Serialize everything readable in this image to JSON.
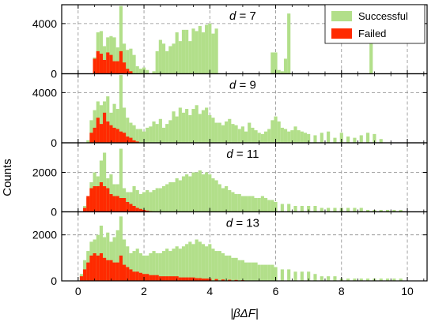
{
  "chart_data": {
    "type": "histogram",
    "xlabel": "|βΔF|",
    "ylabel": "Counts",
    "xlim": [
      -0.5,
      10.6
    ],
    "x_ticks": [
      0,
      2,
      4,
      6,
      8,
      10
    ],
    "grid": true,
    "bin_width": 0.1,
    "legend": {
      "position": "top-right",
      "entries": [
        "Successful",
        "Failed"
      ]
    },
    "colors": {
      "Successful": "#b2df8a",
      "Failed": "#ff2a00"
    },
    "panels": [
      {
        "label_prefix": "d",
        "label_value": "7",
        "ylim": [
          0,
          5500
        ],
        "y_ticks": [
          0,
          4000
        ],
        "series": [
          {
            "name": "Successful",
            "x": [
              0.5,
              0.6,
              0.7,
              0.8,
              0.9,
              1.0,
              1.1,
              1.2,
              1.3,
              1.4,
              1.5,
              1.6,
              1.7,
              1.8,
              1.9,
              2.0,
              2.1,
              2.3,
              2.4,
              2.5,
              2.6,
              2.7,
              2.8,
              2.9,
              3.0,
              3.1,
              3.2,
              3.3,
              3.4,
              3.5,
              3.6,
              3.7,
              3.8,
              3.9,
              4.0,
              4.1,
              4.2,
              5.9,
              6.0,
              6.1,
              6.2,
              6.3,
              6.4,
              8.9
            ],
            "y": [
              1300,
              3300,
              3400,
              2200,
              2900,
              3000,
              2900,
              2100,
              5400,
              2400,
              1900,
              2000,
              1500,
              600,
              400,
              500,
              300,
              200,
              1800,
              2700,
              2400,
              1800,
              2200,
              2400,
              3300,
              2600,
              3500,
              3500,
              2600,
              3600,
              3400,
              3800,
              3300,
              3900,
              4000,
              3200,
              3600,
              1700,
              1700,
              300,
              200,
              1200,
              4800,
              2400
            ]
          },
          {
            "name": "Failed",
            "x": [
              0.5,
              0.6,
              0.7,
              0.8,
              0.9,
              1.0,
              1.1,
              1.2,
              1.3,
              1.4,
              1.5,
              1.6
            ],
            "y": [
              1200,
              1800,
              1600,
              1100,
              1700,
              1500,
              1000,
              1000,
              1800,
              900,
              400,
              200
            ]
          }
        ]
      },
      {
        "label_prefix": "d",
        "label_value": "9",
        "ylim": [
          0,
          5500
        ],
        "y_ticks": [
          0,
          4000
        ],
        "series": [
          {
            "name": "Successful",
            "x": [
              0.3,
              0.4,
              0.5,
              0.6,
              0.7,
              0.8,
              0.9,
              1.0,
              1.1,
              1.2,
              1.3,
              1.4,
              1.5,
              1.6,
              1.7,
              1.8,
              1.9,
              2.0,
              2.1,
              2.2,
              2.3,
              2.4,
              2.5,
              2.6,
              2.7,
              2.8,
              2.9,
              3.0,
              3.1,
              3.2,
              3.3,
              3.4,
              3.5,
              3.6,
              3.7,
              3.8,
              3.9,
              4.0,
              4.1,
              4.2,
              4.3,
              4.4,
              4.5,
              4.6,
              4.7,
              4.8,
              4.9,
              5.0,
              5.1,
              5.2,
              5.3,
              5.4,
              5.5,
              5.6,
              5.7,
              5.8,
              5.9,
              6.0,
              6.1,
              6.2,
              6.3,
              6.4,
              6.5,
              6.6,
              6.7,
              6.8,
              6.9,
              7.0,
              7.2,
              7.4,
              7.6,
              7.8,
              8.0,
              8.2,
              8.4,
              8.6,
              8.8,
              9.0,
              9.2
            ],
            "y": [
              200,
              1800,
              2600,
              3300,
              3000,
              3300,
              3700,
              2400,
              3100,
              2700,
              5400,
              2800,
              2000,
              1600,
              1400,
              1100,
              1100,
              900,
              1200,
              1300,
              1700,
              1500,
              1900,
              1200,
              1500,
              1800,
              2500,
              2100,
              2800,
              2400,
              2700,
              2200,
              2700,
              3000,
              2300,
              2600,
              2800,
              2200,
              2000,
              1600,
              1600,
              1400,
              1700,
              1900,
              1500,
              1400,
              1100,
              1300,
              900,
              1600,
              1200,
              1000,
              800,
              700,
              900,
              1100,
              1800,
              2100,
              1700,
              1200,
              1100,
              900,
              1000,
              1300,
              1000,
              900,
              800,
              700,
              600,
              800,
              900,
              400,
              800,
              500,
              400,
              600,
              800,
              700,
              300
            ]
          },
          {
            "name": "Failed",
            "x": [
              0.4,
              0.5,
              0.6,
              0.7,
              0.8,
              0.9,
              1.0,
              1.1,
              1.2,
              1.3,
              1.4,
              1.5,
              1.6,
              1.7,
              1.8
            ],
            "y": [
              800,
              1200,
              2000,
              1500,
              2400,
              1700,
              1400,
              1200,
              1100,
              900,
              800,
              500,
              400,
              200,
              100
            ]
          }
        ]
      },
      {
        "label_prefix": "d",
        "label_value": "11",
        "ylim": [
          0,
          3500
        ],
        "y_ticks": [
          0,
          2000
        ],
        "series": [
          {
            "name": "Successful",
            "x": [
              0.2,
              0.3,
              0.4,
              0.5,
              0.6,
              0.7,
              0.8,
              0.9,
              1.0,
              1.1,
              1.2,
              1.3,
              1.4,
              1.5,
              1.6,
              1.7,
              1.8,
              1.9,
              2.0,
              2.1,
              2.2,
              2.3,
              2.4,
              2.5,
              2.6,
              2.7,
              2.8,
              2.9,
              3.0,
              3.1,
              3.2,
              3.3,
              3.4,
              3.5,
              3.6,
              3.7,
              3.8,
              3.9,
              4.0,
              4.1,
              4.2,
              4.3,
              4.4,
              4.5,
              4.6,
              4.7,
              4.8,
              4.9,
              5.0,
              5.1,
              5.2,
              5.3,
              5.4,
              5.5,
              5.6,
              5.7,
              5.8,
              5.9,
              6.0,
              6.2,
              6.4,
              6.6,
              6.8,
              7.0,
              7.2,
              7.4,
              7.6,
              7.8,
              8.0,
              8.2,
              8.4,
              8.6,
              8.8,
              9.0,
              9.2,
              9.4,
              9.6,
              9.8
            ],
            "y": [
              300,
              700,
              1500,
              2000,
              1800,
              2600,
              3000,
              1700,
              1900,
              1400,
              1400,
              3200,
              1200,
              1000,
              1000,
              1300,
              1100,
              900,
              1000,
              1100,
              1000,
              1100,
              1200,
              1200,
              1300,
              1400,
              1500,
              1500,
              1700,
              1600,
              1800,
              1900,
              1800,
              2000,
              2000,
              2100,
              1900,
              2000,
              1900,
              1700,
              1600,
              1400,
              1200,
              1300,
              1100,
              1000,
              900,
              900,
              800,
              800,
              800,
              800,
              700,
              700,
              800,
              700,
              600,
              600,
              500,
              400,
              400,
              300,
              300,
              300,
              300,
              200,
              200,
              200,
              200,
              200,
              200,
              200,
              100,
              100,
              100,
              100,
              100,
              100
            ]
          },
          {
            "name": "Failed",
            "x": [
              0.2,
              0.3,
              0.4,
              0.5,
              0.6,
              0.7,
              0.8,
              0.9,
              1.0,
              1.1,
              1.2,
              1.3,
              1.4,
              1.5,
              1.6,
              1.7,
              1.8,
              1.9,
              2.0,
              2.1,
              2.2
            ],
            "y": [
              200,
              800,
              1200,
              1300,
              1300,
              1500,
              1300,
              1200,
              900,
              800,
              800,
              700,
              700,
              500,
              400,
              300,
              200,
              150,
              100,
              60,
              30
            ]
          }
        ]
      },
      {
        "label_prefix": "d",
        "label_value": "13",
        "ylim": [
          0,
          3000
        ],
        "y_ticks": [
          0,
          2000
        ],
        "series": [
          {
            "name": "Successful",
            "x": [
              0.1,
              0.2,
              0.3,
              0.4,
              0.5,
              0.6,
              0.7,
              0.8,
              0.9,
              1.0,
              1.1,
              1.2,
              1.3,
              1.4,
              1.5,
              1.6,
              1.7,
              1.8,
              1.9,
              2.0,
              2.1,
              2.2,
              2.3,
              2.4,
              2.5,
              2.6,
              2.7,
              2.8,
              2.9,
              3.0,
              3.1,
              3.2,
              3.3,
              3.4,
              3.5,
              3.6,
              3.7,
              3.8,
              3.9,
              4.0,
              4.1,
              4.2,
              4.3,
              4.4,
              4.5,
              4.6,
              4.7,
              4.8,
              4.9,
              5.0,
              5.1,
              5.2,
              5.3,
              5.4,
              5.5,
              5.6,
              5.7,
              5.8,
              5.9,
              6.0,
              6.2,
              6.4,
              6.6,
              6.8,
              7.0,
              7.2,
              7.4,
              7.6,
              7.8,
              8.0,
              8.2,
              8.4,
              8.6,
              8.8,
              9.0,
              9.2,
              9.4,
              9.6,
              9.8
            ],
            "y": [
              300,
              900,
              1300,
              1700,
              1800,
              2000,
              2400,
              1900,
              2100,
              1700,
              1900,
              2200,
              2800,
              1800,
              1500,
              1200,
              1300,
              1400,
              1200,
              1100,
              1100,
              1200,
              1300,
              1200,
              1200,
              1300,
              1400,
              1300,
              1400,
              1500,
              1400,
              1500,
              1600,
              1700,
              1600,
              1800,
              1700,
              1600,
              1500,
              1600,
              1400,
              1300,
              1300,
              1200,
              1100,
              1100,
              1000,
              1000,
              900,
              900,
              800,
              800,
              800,
              800,
              700,
              700,
              700,
              700,
              700,
              600,
              500,
              500,
              400,
              400,
              400,
              300,
              200,
              200,
              200,
              100,
              100,
              100,
              100,
              100,
              100,
              100,
              100,
              100,
              100
            ]
          },
          {
            "name": "Failed",
            "x": [
              0.1,
              0.2,
              0.3,
              0.4,
              0.5,
              0.6,
              0.7,
              0.8,
              0.9,
              1.0,
              1.1,
              1.2,
              1.3,
              1.4,
              1.5,
              1.6,
              1.7,
              1.8,
              1.9,
              2.0,
              2.1,
              2.2,
              2.3,
              2.4,
              2.5,
              2.6,
              2.7,
              2.8,
              2.9,
              3.0,
              3.1,
              3.2,
              3.3,
              3.4,
              3.5,
              3.6,
              3.7,
              3.8,
              3.9,
              4.0,
              4.2,
              4.4,
              4.6,
              4.8,
              5.0
            ],
            "y": [
              200,
              500,
              800,
              1100,
              1200,
              1100,
              1200,
              1000,
              900,
              900,
              800,
              800,
              1100,
              700,
              600,
              500,
              400,
              400,
              350,
              300,
              300,
              250,
              250,
              250,
              200,
              200,
              200,
              200,
              200,
              200,
              150,
              150,
              150,
              150,
              150,
              120,
              120,
              100,
              100,
              100,
              80,
              60,
              50,
              40,
              30
            ]
          }
        ]
      }
    ]
  }
}
